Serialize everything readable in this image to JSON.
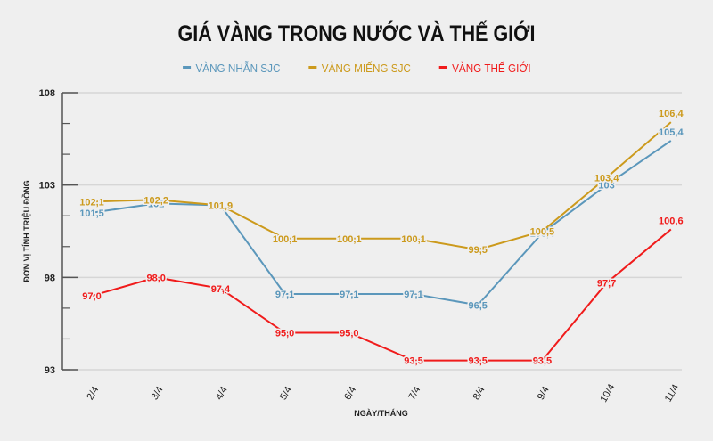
{
  "title": "GIÁ VÀNG TRONG NƯỚC VÀ THẾ GIỚI",
  "legend": [
    {
      "label": "VÀNG NHẪN SJC",
      "color": "#5b97bb"
    },
    {
      "label": "VÀNG MIẾNG SJC",
      "color": "#cc9a1c"
    },
    {
      "label": "VÀNG THẾ GIỚI",
      "color": "#f01b1b"
    }
  ],
  "chart_data": {
    "type": "line",
    "title": "GIÁ VÀNG TRONG NƯỚC VÀ THẾ GIỚI",
    "xlabel": "NGÀY/THÁNG",
    "ylabel": "ĐƠN VỊ TÍNH TRIỆU ĐỒNG",
    "categories": [
      "2/4",
      "3/4",
      "4/4",
      "5/4",
      "6/4",
      "7/4",
      "8/4",
      "9/4",
      "10/4",
      "11/4"
    ],
    "ylim": [
      93,
      108
    ],
    "yticks": [
      93,
      98,
      103,
      108
    ],
    "grid": true,
    "legend_position": "top",
    "series": [
      {
        "name": "VÀNG NHẪN SJC",
        "color": "#5b97bb",
        "values": [
          101.5,
          102,
          101.9,
          97.1,
          97.1,
          97.1,
          96.5,
          100.4,
          103,
          105.4
        ],
        "labels": [
          "101,5",
          "102",
          "",
          "97,1",
          "97,1",
          "97,1",
          "96,5",
          "100,4",
          "103",
          "105,4"
        ]
      },
      {
        "name": "VÀNG MIẾNG SJC",
        "color": "#cc9a1c",
        "values": [
          102.1,
          102.2,
          101.9,
          100.1,
          100.1,
          100.1,
          99.5,
          100.5,
          103.4,
          106.4
        ],
        "labels": [
          "102,1",
          "102,2",
          "101,9",
          "100,1",
          "100,1",
          "100,1",
          "99,5",
          "100,5",
          "103,4",
          "106,4"
        ]
      },
      {
        "name": "VÀNG THẾ GIỚI",
        "color": "#f01b1b",
        "values": [
          97.0,
          98.0,
          97.4,
          95.0,
          95.0,
          93.5,
          93.5,
          93.5,
          97.7,
          100.6
        ],
        "labels": [
          "97,0",
          "98,0",
          "97,4",
          "95,0",
          "95,0",
          "93,5",
          "93,5",
          "93,5",
          "97,7",
          "100,6"
        ]
      }
    ]
  }
}
